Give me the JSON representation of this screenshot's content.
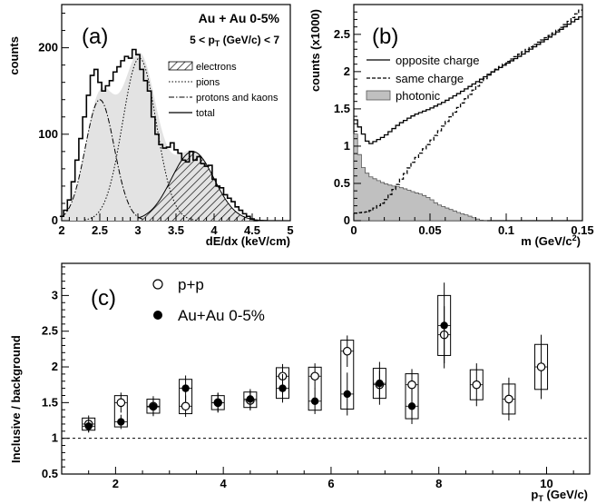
{
  "chart_data": [
    {
      "panel": "(a)",
      "type": "area",
      "title": "Au + Au 0-5%",
      "subtitle": "5 < p_T (GeV/c) < 7",
      "xlabel": "dE/dx (keV/cm)",
      "ylabel": "counts",
      "xlim": [
        2,
        5
      ],
      "ylim": [
        0,
        250
      ],
      "xticks": [
        "2",
        "2.5",
        "3",
        "3.5",
        "4",
        "4.5",
        "5"
      ],
      "yticks": [
        "0",
        "100",
        "200"
      ],
      "legend": [
        "electrons",
        "pions",
        "protons and kaons",
        "total"
      ],
      "series": [
        {
          "name": "electrons",
          "mean": 3.72,
          "sigma": 0.28,
          "amplitude": 80
        },
        {
          "name": "pions",
          "mean": 3.02,
          "sigma": 0.22,
          "amplitude": 188
        },
        {
          "name": "protons and kaons",
          "mean": 2.5,
          "sigma": 0.19,
          "amplitude": 140
        },
        {
          "name": "total",
          "x": [
            2.0,
            2.05,
            2.1,
            2.15,
            2.2,
            2.25,
            2.3,
            2.35,
            2.4,
            2.45,
            2.5,
            2.55,
            2.6,
            2.65,
            2.7,
            2.75,
            2.8,
            2.85,
            2.9,
            2.95,
            3.0,
            3.05,
            3.1,
            3.15,
            3.2,
            3.25,
            3.3,
            3.35,
            3.4,
            3.45,
            3.5,
            3.55,
            3.6,
            3.65,
            3.7,
            3.75,
            3.8,
            3.85,
            3.9,
            3.95,
            4.0,
            4.05,
            4.1,
            4.15,
            4.2,
            4.25,
            4.3,
            4.35,
            4.4,
            4.45,
            4.5,
            4.55
          ],
          "values": [
            5,
            12,
            24,
            45,
            70,
            95,
            120,
            145,
            168,
            175,
            160,
            150,
            156,
            162,
            172,
            178,
            185,
            190,
            188,
            198,
            192,
            175,
            162,
            150,
            120,
            100,
            88,
            84,
            85,
            90,
            82,
            78,
            70,
            68,
            80,
            70,
            74,
            66,
            63,
            64,
            48,
            40,
            38,
            30,
            26,
            22,
            16,
            12,
            8,
            5,
            2,
            0
          ]
        }
      ]
    },
    {
      "panel": "(b)",
      "type": "line",
      "xlabel": "m (GeV/c^2)",
      "ylabel": "counts (x1000)",
      "xlim": [
        0,
        0.15
      ],
      "ylim": [
        0,
        2.9
      ],
      "xticks": [
        "0",
        "0.05",
        "0.1",
        "0.15"
      ],
      "yticks": [
        "0",
        "0.5",
        "1",
        "1.5",
        "2",
        "2.5"
      ],
      "legend": [
        "opposite charge",
        "same charge",
        "photonic"
      ],
      "series": [
        {
          "name": "opposite charge",
          "x": [
            0.0,
            0.01,
            0.02,
            0.03,
            0.04,
            0.05,
            0.06,
            0.07,
            0.08,
            0.09,
            0.1,
            0.11,
            0.12,
            0.13,
            0.14,
            0.15
          ],
          "values": [
            1.4,
            1.02,
            1.13,
            1.3,
            1.42,
            1.5,
            1.6,
            1.72,
            1.85,
            1.98,
            2.1,
            2.22,
            2.35,
            2.48,
            2.62,
            2.75
          ]
        },
        {
          "name": "same charge",
          "x": [
            0.0,
            0.01,
            0.02,
            0.03,
            0.04,
            0.05,
            0.06,
            0.07,
            0.08,
            0.09,
            0.1,
            0.11,
            0.12,
            0.13,
            0.14,
            0.15
          ],
          "values": [
            0.1,
            0.12,
            0.25,
            0.52,
            0.82,
            1.05,
            1.3,
            1.55,
            1.78,
            1.98,
            2.12,
            2.25,
            2.38,
            2.5,
            2.65,
            2.85
          ]
        },
        {
          "name": "photonic",
          "x": [
            0.0,
            0.005,
            0.01,
            0.015,
            0.02,
            0.025,
            0.03,
            0.035,
            0.04,
            0.045,
            0.05,
            0.055,
            0.06,
            0.065,
            0.07,
            0.075,
            0.08,
            0.085
          ],
          "values": [
            1.3,
            0.75,
            0.6,
            0.55,
            0.5,
            0.47,
            0.45,
            0.42,
            0.38,
            0.35,
            0.3,
            0.22,
            0.18,
            0.14,
            0.1,
            0.07,
            0.03,
            0.0
          ]
        }
      ]
    },
    {
      "panel": "(c)",
      "type": "scatter",
      "xlabel": "p_T (GeV/c)",
      "ylabel": "Inclusive / background",
      "xlim": [
        1,
        10.8
      ],
      "ylim": [
        0.5,
        3.45
      ],
      "xticks": [
        "2",
        "4",
        "6",
        "8",
        "10"
      ],
      "yticks": [
        "0.5",
        "1",
        "1.5",
        "2",
        "2.5",
        "3"
      ],
      "reference_line": 1,
      "legend": [
        "p+p",
        "Au+Au 0-5%"
      ],
      "series": [
        {
          "name": "p+p",
          "x": [
            1.5,
            2.1,
            2.7,
            3.3,
            3.9,
            4.5,
            5.1,
            5.7,
            6.3,
            6.9,
            7.5,
            8.1,
            8.7,
            9.3,
            9.9
          ],
          "values": [
            1.2,
            1.5,
            1.45,
            1.45,
            1.5,
            1.53,
            1.87,
            1.87,
            2.22,
            1.75,
            1.75,
            2.45,
            1.75,
            1.55,
            2.0
          ],
          "errors": [
            0.12,
            0.14,
            0.14,
            0.15,
            0.14,
            0.14,
            0.17,
            0.18,
            0.22,
            0.2,
            0.22,
            0.4,
            0.3,
            0.3,
            0.45
          ]
        },
        {
          "name": "Au+Au 0-5%",
          "x": [
            1.5,
            2.1,
            2.7,
            3.3,
            3.9,
            4.5,
            5.1,
            5.7,
            6.3,
            6.9,
            7.5,
            8.1
          ],
          "values": [
            1.17,
            1.23,
            1.44,
            1.7,
            1.5,
            1.55,
            1.7,
            1.52,
            1.62,
            1.77,
            1.45,
            2.58
          ],
          "errors": [
            0.08,
            0.1,
            0.12,
            0.18,
            0.13,
            0.14,
            0.2,
            0.18,
            0.3,
            0.3,
            0.25,
            0.6
          ]
        }
      ]
    }
  ]
}
